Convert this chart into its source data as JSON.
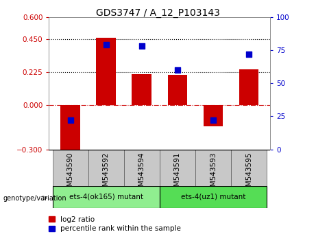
{
  "title": "GDS3747 / A_12_P103143",
  "samples": [
    "GSM543590",
    "GSM543592",
    "GSM543594",
    "GSM543591",
    "GSM543593",
    "GSM543595"
  ],
  "log2_ratio": [
    -0.34,
    0.46,
    0.21,
    0.205,
    -0.145,
    0.245
  ],
  "percentile_rank": [
    22,
    79,
    78,
    60,
    22,
    72
  ],
  "bar_color": "#cc0000",
  "dot_color": "#0000cc",
  "ylim_left": [
    -0.3,
    0.6
  ],
  "ylim_right": [
    0,
    100
  ],
  "yticks_left": [
    -0.3,
    0,
    0.225,
    0.45,
    0.6
  ],
  "yticks_right": [
    0,
    25,
    50,
    75,
    100
  ],
  "hlines": [
    0.45,
    0.225
  ],
  "hline_zero_color": "#cc0000",
  "hline_color": "black",
  "group1_label": "ets-4(ok165) mutant",
  "group2_label": "ets-4(uz1) mutant",
  "group1_color": "#90ee90",
  "group2_color": "#55dd55",
  "xlabel_area_color": "#c8c8c8",
  "legend_log2_label": "log2 ratio",
  "legend_pct_label": "percentile rank within the sample",
  "bar_width": 0.55,
  "dot_size": 30,
  "title_fontsize": 10,
  "tick_fontsize": 7.5,
  "label_fontsize": 7.5,
  "legend_fontsize": 7.5
}
